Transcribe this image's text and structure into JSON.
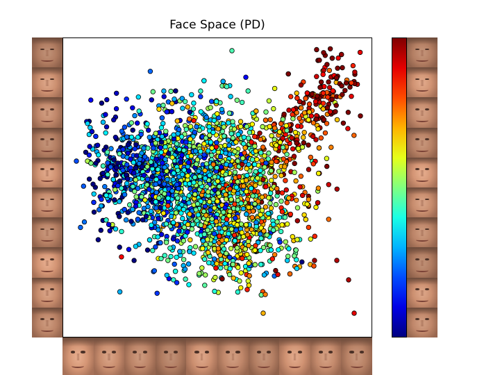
{
  "chart_data": {
    "type": "scatter",
    "title": "Face Space (PD)",
    "xlabel": "",
    "ylabel": "",
    "xlim": [
      0,
      446
    ],
    "ylim": [
      0,
      432
    ],
    "grid": false,
    "legend": "none",
    "colormap": "jet",
    "colorbar": {
      "position": "right",
      "ticks": []
    },
    "marker": {
      "edgecolor": "#000000"
    },
    "point_count": 2600,
    "outlier_points": [
      {
        "x": 244,
        "y": 413,
        "c": 0.45
      },
      {
        "x": 20,
        "y": 254,
        "c": 0.2
      },
      {
        "x": 36,
        "y": 254,
        "c": 0.55
      },
      {
        "x": 41,
        "y": 251,
        "c": 0.5
      },
      {
        "x": 289,
        "y": 35,
        "c": 0.7
      },
      {
        "x": 395,
        "y": 111,
        "c": 0.95
      },
      {
        "x": 412,
        "y": 83,
        "c": 0.95
      },
      {
        "x": 420,
        "y": 35,
        "c": 0.9
      },
      {
        "x": 266,
        "y": 69,
        "c": 0.85
      },
      {
        "x": 292,
        "y": 62,
        "c": 0.75
      },
      {
        "x": 338,
        "y": 141,
        "c": 0.6
      },
      {
        "x": 362,
        "y": 103,
        "c": 0.8
      }
    ]
  },
  "thumbnails": {
    "left_count": 10,
    "bottom_count": 10,
    "right_count": 10
  }
}
